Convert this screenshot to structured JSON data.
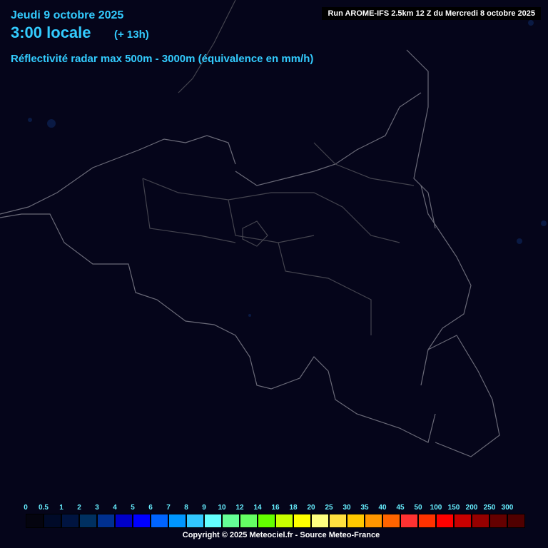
{
  "header": {
    "date": "Jeudi 9 octobre 2025",
    "time": "3:00 locale",
    "offset": "(+ 13h)",
    "parameter": "Réflectivité radar max 500m - 3000m (équivalence en mm/h)",
    "run": "Run AROME-IFS 2.5km 12 Z du Mercredi 8 octobre 2025"
  },
  "legend": {
    "labels": [
      "0",
      "0.5",
      "1",
      "2",
      "3",
      "4",
      "5",
      "6",
      "7",
      "8",
      "9",
      "10",
      "12",
      "14",
      "16",
      "18",
      "20",
      "25",
      "30",
      "35",
      "40",
      "45",
      "50",
      "100",
      "150",
      "200",
      "250",
      "300"
    ],
    "colors": [
      "#04040f",
      "#000a28",
      "#001440",
      "#003060",
      "#003090",
      "#0000c8",
      "#0000ff",
      "#0064ff",
      "#0096ff",
      "#32c8ff",
      "#64ffff",
      "#64ff96",
      "#64ff64",
      "#64ff00",
      "#c8ff00",
      "#ffff00",
      "#ffff80",
      "#ffe040",
      "#ffc800",
      "#ff9600",
      "#ff6400",
      "#ff3232",
      "#ff3200",
      "#ff0000",
      "#c80000",
      "#960000",
      "#640000",
      "#500000"
    ]
  },
  "footer": {
    "copyright": "Copyright © 2025 Meteociel.fr - Source Meteo-France"
  },
  "map": {
    "background": "#05051a",
    "border_color": "#6a6a78"
  }
}
